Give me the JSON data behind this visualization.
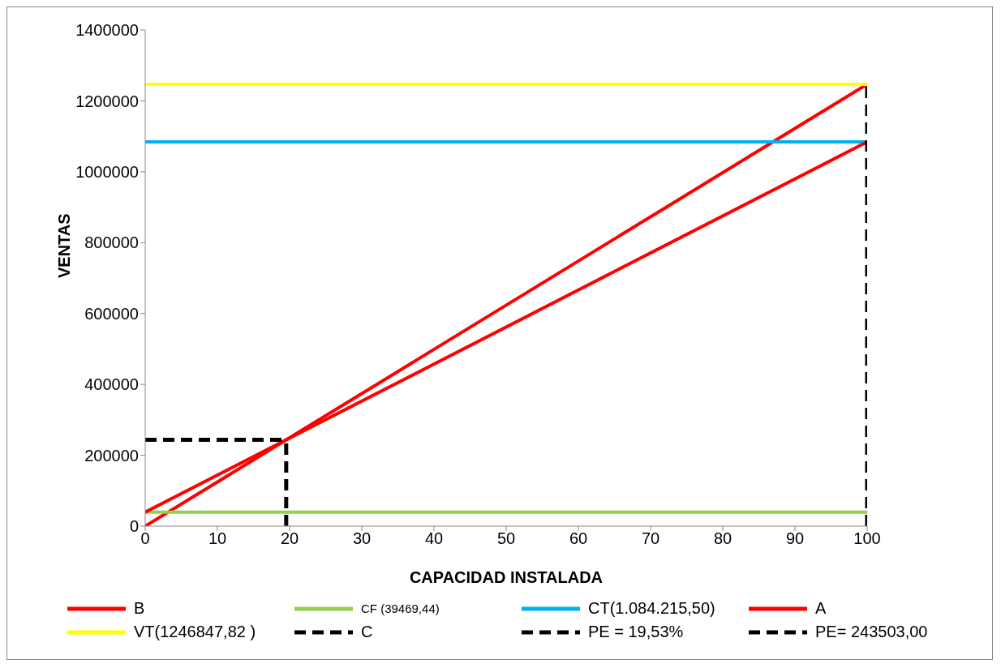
{
  "chart_data": {
    "type": "line",
    "xlabel": "CAPACIDAD INSTALADA",
    "ylabel": "VENTAS",
    "xlim": [
      0,
      100
    ],
    "xticks": [
      0,
      10,
      20,
      30,
      40,
      50,
      60,
      70,
      80,
      90,
      100
    ],
    "ylim": [
      0,
      1400000
    ],
    "yticks": [
      0,
      200000,
      400000,
      600000,
      800000,
      1000000,
      1200000,
      1400000
    ],
    "grid": false,
    "legend": "bottom",
    "marker": "none",
    "series": [
      {
        "name": "B",
        "color": "#ff0000",
        "x": [
          0,
          100
        ],
        "values": [
          0,
          1246847.82
        ]
      },
      {
        "name": "CF (39469,44)",
        "color": "#92d050",
        "x": [
          0,
          100
        ],
        "values": [
          39469.44,
          39469.44
        ]
      },
      {
        "name": "CT(1.084.215,50)",
        "color": "#00b0f0",
        "x": [
          0,
          100
        ],
        "values": [
          1084215.5,
          1084215.5
        ]
      },
      {
        "name": "A",
        "color": "#ff0000",
        "x": [
          0,
          100
        ],
        "values": [
          39469.44,
          1084215.5
        ]
      },
      {
        "name": "VT(1246847,82 )",
        "color": "#ffff00",
        "x": [
          0,
          100
        ],
        "values": [
          1246847.82,
          1246847.82
        ]
      },
      {
        "name": "C",
        "color": "#000000",
        "line_style": "dashed",
        "x": [
          100,
          100
        ],
        "values": [
          0,
          1246847.82
        ]
      },
      {
        "name": "PE = 19,53%",
        "color": "#000000",
        "line_style": "dashed",
        "x": [
          19.53,
          19.53
        ],
        "values": [
          0,
          243503
        ]
      },
      {
        "name": "PE= 243503,00",
        "color": "#000000",
        "line_style": "dashed",
        "x": [
          0,
          19.53
        ],
        "values": [
          243503,
          243503
        ]
      }
    ]
  }
}
